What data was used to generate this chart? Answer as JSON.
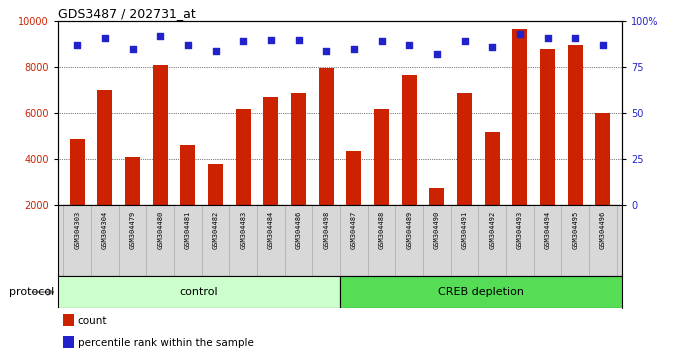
{
  "title": "GDS3487 / 202731_at",
  "samples": [
    "GSM304303",
    "GSM304304",
    "GSM304479",
    "GSM304480",
    "GSM304481",
    "GSM304482",
    "GSM304483",
    "GSM304484",
    "GSM304486",
    "GSM304498",
    "GSM304487",
    "GSM304488",
    "GSM304489",
    "GSM304490",
    "GSM304491",
    "GSM304492",
    "GSM304493",
    "GSM304494",
    "GSM304495",
    "GSM304496"
  ],
  "counts": [
    4900,
    7000,
    4100,
    8100,
    4600,
    3800,
    6200,
    6700,
    6900,
    7950,
    4350,
    6200,
    7650,
    2750,
    6900,
    5200,
    9650,
    8800,
    8950,
    6000
  ],
  "percentile_ranks": [
    87,
    91,
    85,
    92,
    87,
    84,
    89,
    90,
    90,
    84,
    85,
    89,
    87,
    82,
    89,
    86,
    93,
    91,
    91,
    87
  ],
  "control_count": 10,
  "creb_count": 10,
  "bar_color": "#cc2200",
  "dot_color": "#2222cc",
  "ylim_left": [
    2000,
    10000
  ],
  "ylim_right": [
    0,
    100
  ],
  "yticks_left": [
    2000,
    4000,
    6000,
    8000,
    10000
  ],
  "yticks_right": [
    0,
    25,
    50,
    75,
    100
  ],
  "control_color": "#ccffcc",
  "creb_color": "#55dd55",
  "protocol_label": "protocol",
  "control_label": "control",
  "creb_label": "CREB depletion",
  "legend_count": "count",
  "legend_pct": "percentile rank within the sample",
  "bg_color": "#d8d8d8",
  "fig_width": 6.8,
  "fig_height": 3.54,
  "dpi": 100
}
